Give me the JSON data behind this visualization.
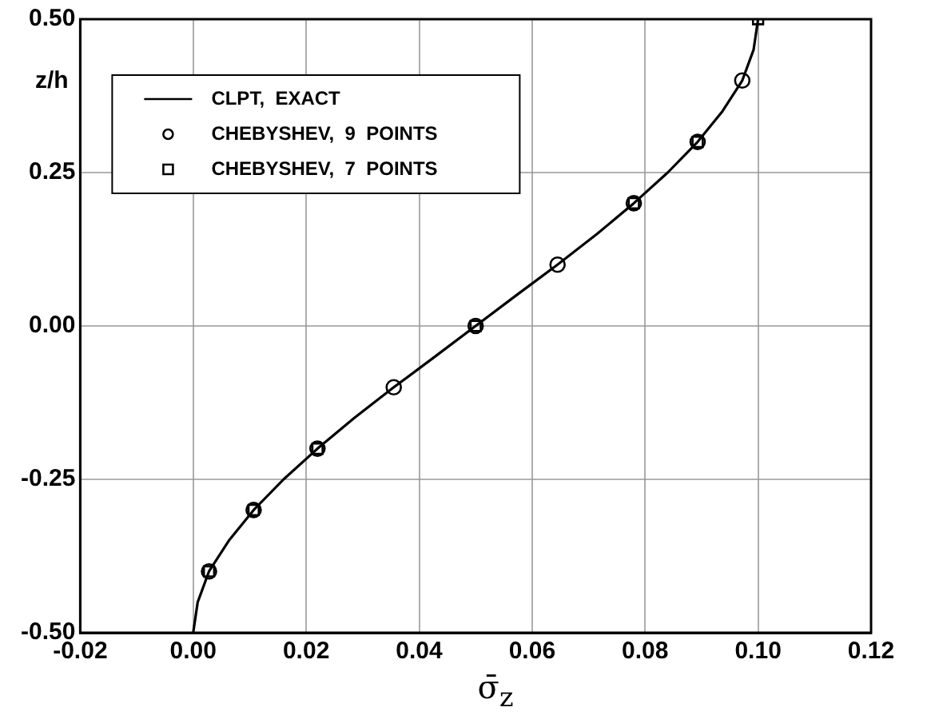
{
  "chart_data": {
    "type": "line",
    "xlabel": "σ̄$_{z}$",
    "ylabel": "z/h",
    "xlim": [
      -0.02,
      0.12
    ],
    "xticks": [
      {
        "value": -0.02,
        "label": "-0.02"
      },
      {
        "value": 0,
        "label": "0.00"
      },
      {
        "value": 0.02,
        "label": "0.02"
      },
      {
        "value": 0.04,
        "label": "0.04"
      },
      {
        "value": 0.06,
        "label": "0.06"
      },
      {
        "value": 0.08,
        "label": "0.08"
      },
      {
        "value": 0.1,
        "label": "0.10"
      },
      {
        "value": 0.12,
        "label": "0.12"
      }
    ],
    "ylim": [
      -0.5,
      0.5
    ],
    "yticks": [
      {
        "value": -0.5,
        "label": "-0.50"
      },
      {
        "value": -0.25,
        "label": "-0.25"
      },
      {
        "value": 0,
        "label": "0.00"
      },
      {
        "value": 0.25,
        "label": "0.25"
      },
      {
        "value": 0.5,
        "label": "0.50"
      }
    ],
    "grid": true,
    "legend": "top left",
    "series": [
      {
        "name": "CLPT,  EXACT",
        "type": "line",
        "color": "#000000",
        "marker": "none",
        "line_style": "solid",
        "x": [
          0,
          0.0008,
          0.0028,
          0.0063,
          0.0107,
          0.016,
          0.022,
          0.0285,
          0.0355,
          0.0428,
          0.05,
          0.0572,
          0.0645,
          0.0715,
          0.078,
          0.084,
          0.0893,
          0.0937,
          0.0972,
          0.0992,
          0.1
        ],
        "values": [
          -0.5,
          -0.45,
          -0.4,
          -0.35,
          -0.3,
          -0.25,
          -0.2,
          -0.15,
          -0.1,
          -0.05,
          0,
          0.05,
          0.1,
          0.15,
          0.2,
          0.25,
          0.3,
          0.35,
          0.4,
          0.45,
          0.5
        ]
      },
      {
        "name": "CHEBYSHEV,  9  POINTS",
        "type": "scatter",
        "color": "#000000",
        "marker": "circle",
        "x": [
          0.0028,
          0.0107,
          0.022,
          0.0355,
          0.05,
          0.0645,
          0.078,
          0.0893,
          0.0972
        ],
        "values": [
          -0.4,
          -0.3,
          -0.2,
          -0.1,
          0,
          0.1,
          0.2,
          0.3,
          0.4
        ]
      },
      {
        "name": "CHEBYSHEV,  7  POINTS",
        "type": "scatter",
        "color": "#000000",
        "marker": "square",
        "x": [
          0.0028,
          0.0107,
          0.022,
          0.05,
          0.078,
          0.0893,
          0.1
        ],
        "values": [
          -0.4,
          -0.3,
          -0.2,
          0,
          0.2,
          0.3,
          0.5
        ]
      }
    ]
  }
}
